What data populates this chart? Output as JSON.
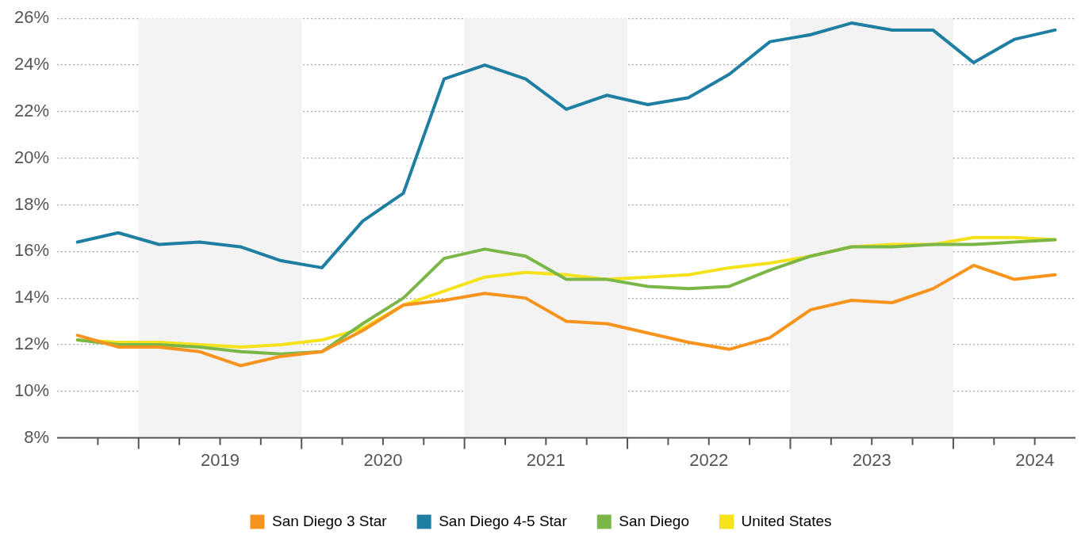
{
  "chart_data": {
    "type": "line",
    "x": [
      2018.625,
      2018.875,
      2019.125,
      2019.375,
      2019.625,
      2019.875,
      2020.125,
      2020.375,
      2020.625,
      2020.875,
      2021.125,
      2021.375,
      2021.625,
      2021.875,
      2022.125,
      2022.375,
      2022.625,
      2022.875,
      2023.125,
      2023.375,
      2023.625,
      2023.875,
      2024.125,
      2024.375,
      2024.625
    ],
    "series": [
      {
        "name": "San Diego 3 Star",
        "color": "#f7941d",
        "values": [
          12.4,
          11.9,
          11.9,
          11.7,
          11.1,
          11.5,
          11.7,
          12.6,
          13.7,
          13.9,
          14.2,
          14.0,
          13.0,
          12.9,
          12.5,
          12.1,
          11.8,
          12.3,
          13.5,
          13.9,
          13.8,
          14.4,
          15.4,
          14.8,
          15.0
        ]
      },
      {
        "name": "San Diego 4-5 Star",
        "color": "#1f7fa3",
        "values": [
          16.4,
          16.8,
          16.3,
          16.4,
          16.2,
          15.6,
          15.3,
          17.3,
          18.5,
          23.4,
          24.0,
          23.4,
          22.1,
          22.7,
          22.3,
          22.6,
          23.6,
          25.0,
          25.3,
          25.8,
          25.5,
          25.5,
          24.1,
          25.1,
          25.5
        ]
      },
      {
        "name": "San Diego",
        "color": "#7ab648",
        "values": [
          12.2,
          12.0,
          12.0,
          11.9,
          11.7,
          11.6,
          11.7,
          12.9,
          14.0,
          15.7,
          16.1,
          15.8,
          14.8,
          14.8,
          14.5,
          14.4,
          14.5,
          15.2,
          15.8,
          16.2,
          16.2,
          16.3,
          16.3,
          16.4,
          16.5
        ]
      },
      {
        "name": "United States",
        "color": "#f5e21b",
        "values": [
          12.2,
          12.1,
          12.1,
          12.0,
          11.9,
          12.0,
          12.2,
          12.7,
          13.7,
          14.3,
          14.9,
          15.1,
          15.0,
          14.8,
          14.9,
          15.0,
          15.3,
          15.5,
          15.8,
          16.2,
          16.3,
          16.3,
          16.6,
          16.6,
          16.5
        ]
      }
    ],
    "xlim": [
      2018.5,
      2024.75
    ],
    "xticks": [
      {
        "value": 2018.75,
        "label": null
      },
      {
        "value": 2019,
        "label": null
      },
      {
        "value": 2019.25,
        "label": null
      },
      {
        "value": 2019.5,
        "label": "2019"
      },
      {
        "value": 2019.75,
        "label": null
      },
      {
        "value": 2020,
        "label": null
      },
      {
        "value": 2020.25,
        "label": null
      },
      {
        "value": 2020.5,
        "label": "2020"
      },
      {
        "value": 2020.75,
        "label": null
      },
      {
        "value": 2021,
        "label": null
      },
      {
        "value": 2021.25,
        "label": null
      },
      {
        "value": 2021.5,
        "label": "2021"
      },
      {
        "value": 2021.75,
        "label": null
      },
      {
        "value": 2022,
        "label": null
      },
      {
        "value": 2022.25,
        "label": null
      },
      {
        "value": 2022.5,
        "label": "2022"
      },
      {
        "value": 2022.75,
        "label": null
      },
      {
        "value": 2023,
        "label": null
      },
      {
        "value": 2023.25,
        "label": null
      },
      {
        "value": 2023.5,
        "label": "2023"
      },
      {
        "value": 2023.75,
        "label": null
      },
      {
        "value": 2024,
        "label": null
      },
      {
        "value": 2024.25,
        "label": null
      },
      {
        "value": 2024.5,
        "label": "2024"
      }
    ],
    "ylim": [
      8,
      26
    ],
    "yticks": [
      {
        "value": 8,
        "label": "8%"
      },
      {
        "value": 10,
        "label": "10%"
      },
      {
        "value": 12,
        "label": "12%"
      },
      {
        "value": 14,
        "label": "14%"
      },
      {
        "value": 16,
        "label": "16%"
      },
      {
        "value": 18,
        "label": "18%"
      },
      {
        "value": 20,
        "label": "20%"
      },
      {
        "value": 22,
        "label": "22%"
      },
      {
        "value": 24,
        "label": "24%"
      },
      {
        "value": 26,
        "label": "26%"
      }
    ],
    "bands": [
      {
        "axis": "x",
        "from": 2019,
        "to": 2020,
        "label": null,
        "color": "#f3f3f3"
      },
      {
        "axis": "x",
        "from": 2021,
        "to": 2022,
        "label": null,
        "color": "#f3f3f3"
      },
      {
        "axis": "x",
        "from": 2023,
        "to": 2024,
        "label": null,
        "color": "#f3f3f3"
      }
    ],
    "grid": "y",
    "legend": "bottom",
    "marker": "none",
    "line_style": "solid"
  }
}
